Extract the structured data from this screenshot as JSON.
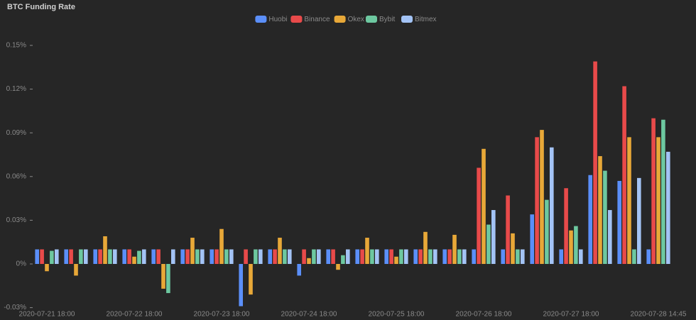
{
  "chart_data": {
    "type": "bar",
    "title": "BTC Funding Rate",
    "categories": [
      "2020-07-21 18:00",
      null,
      null,
      "2020-07-22 18:00",
      null,
      null,
      "2020-07-23 18:00",
      null,
      null,
      "2020-07-24 18:00",
      null,
      null,
      "2020-07-25 18:00",
      null,
      null,
      "2020-07-26 18:00",
      null,
      null,
      "2020-07-27 18:00",
      null,
      null,
      "2020-07-28 14:45"
    ],
    "series": [
      {
        "name": "Huobi",
        "color": "#5b8ff9",
        "values": [
          0.01,
          0.01,
          0.01,
          0.01,
          0.01,
          0.01,
          0.01,
          -0.029,
          0.01,
          -0.008,
          0.01,
          0.01,
          0.01,
          0.01,
          0.01,
          0.01,
          0.01,
          0.034,
          0.01,
          0.061,
          0.057,
          0.01
        ]
      },
      {
        "name": "Binance",
        "color": "#e84a4a",
        "values": [
          0.01,
          0.01,
          0.01,
          0.01,
          0.01,
          0.01,
          0.01,
          0.01,
          0.01,
          0.01,
          0.01,
          0.01,
          0.01,
          0.01,
          0.01,
          0.066,
          0.047,
          0.087,
          0.052,
          0.139,
          0.122,
          0.1
        ]
      },
      {
        "name": "Okex",
        "color": "#e8a838",
        "values": [
          -0.005,
          -0.008,
          0.019,
          0.005,
          -0.017,
          0.018,
          0.024,
          -0.021,
          0.018,
          0.004,
          -0.004,
          0.018,
          0.005,
          0.022,
          0.02,
          0.079,
          0.021,
          0.092,
          0.023,
          0.074,
          0.087,
          0.087
        ]
      },
      {
        "name": "Bybit",
        "color": "#6dc8a0",
        "values": [
          0.009,
          0.01,
          0.01,
          0.009,
          -0.02,
          0.01,
          0.01,
          0.01,
          0.01,
          0.01,
          0.006,
          0.01,
          0.01,
          0.01,
          0.01,
          0.027,
          0.01,
          0.044,
          0.026,
          0.064,
          0.01,
          0.099
        ]
      },
      {
        "name": "Bitmex",
        "color": "#a3c3f5",
        "values": [
          0.01,
          0.01,
          0.01,
          0.01,
          0.01,
          0.01,
          0.01,
          0.01,
          0.01,
          0.01,
          0.01,
          0.01,
          0.01,
          0.01,
          0.01,
          0.037,
          0.01,
          0.08,
          0.01,
          0.037,
          0.059,
          0.077
        ]
      }
    ],
    "ylim": [
      -0.03,
      0.15
    ],
    "yticks": [
      {
        "value": -0.03,
        "label": "-0.03%"
      },
      {
        "value": 0,
        "label": "0%"
      },
      {
        "value": 0.03,
        "label": "0.03%"
      },
      {
        "value": 0.06,
        "label": "0.06%"
      },
      {
        "value": 0.09,
        "label": "0.09%"
      },
      {
        "value": 0.12,
        "label": "0.12%"
      },
      {
        "value": 0.15,
        "label": "0.15%"
      }
    ],
    "legend": "top"
  }
}
